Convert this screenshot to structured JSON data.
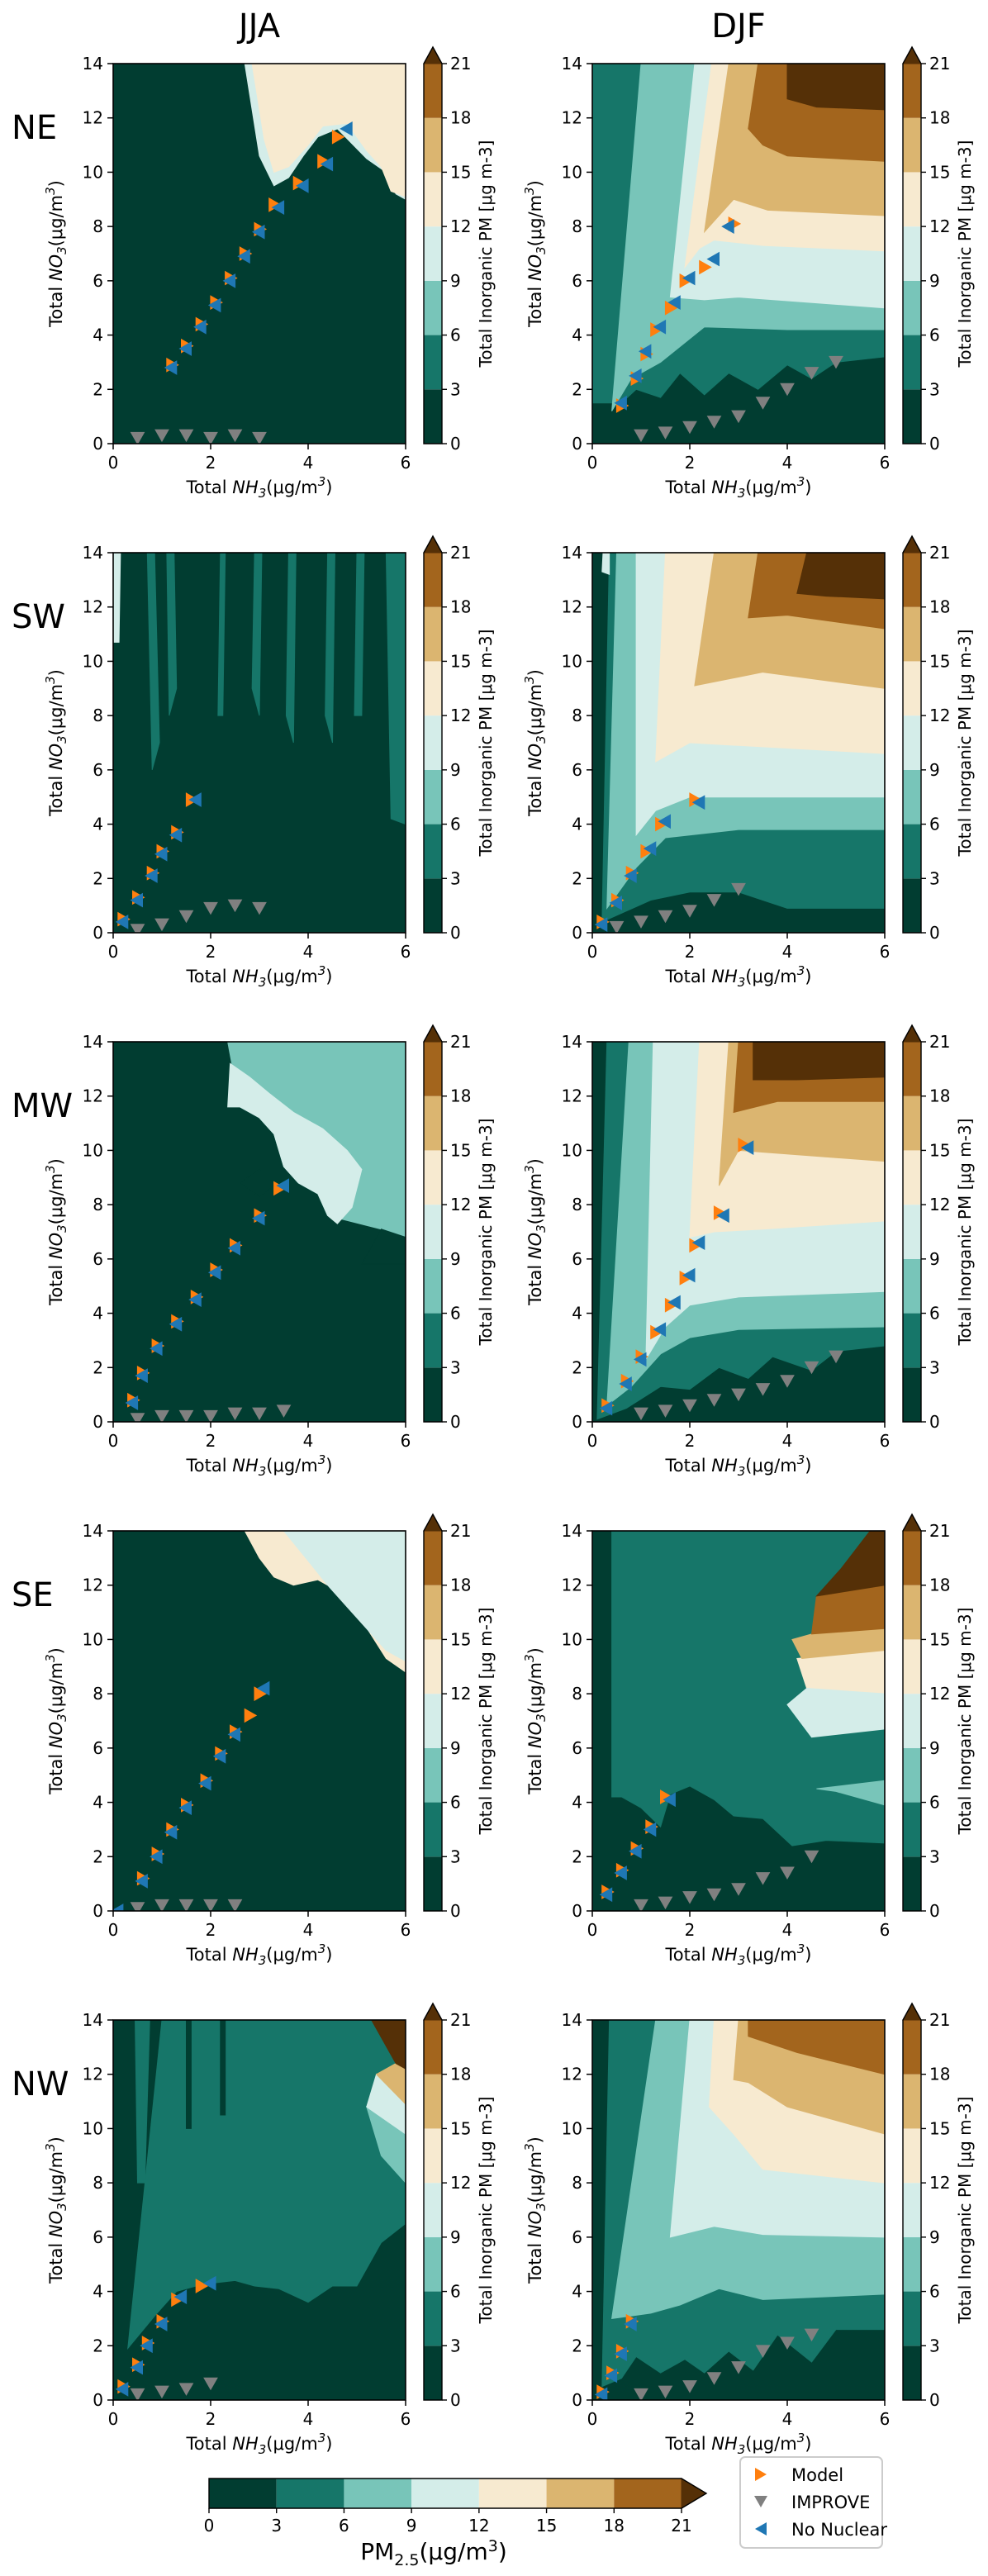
{
  "chart_data": {
    "type": "heatmap",
    "columns": [
      "JJA",
      "DJF"
    ],
    "rows": [
      "NE",
      "SW",
      "MW",
      "SE",
      "NW"
    ],
    "xlabel": "Total NH3(μg/m3)",
    "ylabel": "Total NO3(μg/m3)",
    "colorbar_label": "Total Inorganic PM [μg m-3]",
    "bottom_colorbar_label": "PM2.5(μg/m3)",
    "x_ticks": [
      0,
      2,
      4,
      6
    ],
    "y_ticks": [
      0,
      2,
      4,
      6,
      8,
      10,
      12,
      14
    ],
    "xlim": [
      0,
      6
    ],
    "ylim": [
      0,
      14
    ],
    "levels": [
      0,
      3,
      6,
      9,
      12,
      15,
      18,
      21
    ],
    "level_colors": [
      "#013d31",
      "#167669",
      "#78c5b9",
      "#d4ede9",
      "#f7ead0",
      "#dbb570",
      "#a3651d",
      "#553007"
    ],
    "legend": [
      "Model",
      "IMPROVE",
      "No Nuclear"
    ],
    "legend_colors": [
      "#ff7f0e",
      "#808080",
      "#1f77b4"
    ],
    "panels": [
      {
        "region": "NE",
        "season": "JJA",
        "model": [
          [
            1.2,
            2.9
          ],
          [
            1.5,
            3.6
          ],
          [
            1.8,
            4.4
          ],
          [
            2.1,
            5.2
          ],
          [
            2.4,
            6.1
          ],
          [
            2.7,
            7.0
          ],
          [
            3.0,
            7.9
          ],
          [
            3.3,
            8.8
          ],
          [
            3.8,
            9.6
          ],
          [
            4.3,
            10.4
          ],
          [
            4.6,
            11.3
          ]
        ],
        "no_nuclear": [
          [
            1.2,
            2.8
          ],
          [
            1.5,
            3.5
          ],
          [
            1.8,
            4.3
          ],
          [
            2.1,
            5.1
          ],
          [
            2.4,
            6.0
          ],
          [
            2.7,
            6.9
          ],
          [
            3.0,
            7.8
          ],
          [
            3.4,
            8.7
          ],
          [
            3.9,
            9.5
          ],
          [
            4.4,
            10.3
          ],
          [
            4.8,
            11.6
          ]
        ],
        "improve": [
          [
            0.5,
            0.2
          ],
          [
            1.0,
            0.3
          ],
          [
            1.5,
            0.3
          ],
          [
            2.0,
            0.2
          ],
          [
            2.5,
            0.3
          ],
          [
            3.0,
            0.2
          ]
        ]
      },
      {
        "region": "NE",
        "season": "DJF",
        "model": [
          [
            0.6,
            1.4
          ],
          [
            0.9,
            2.4
          ],
          [
            1.1,
            3.3
          ],
          [
            1.3,
            4.2
          ],
          [
            1.6,
            5.0
          ],
          [
            1.9,
            6.0
          ],
          [
            2.3,
            6.5
          ],
          [
            2.9,
            8.1
          ]
        ],
        "no_nuclear": [
          [
            0.6,
            1.5
          ],
          [
            0.9,
            2.5
          ],
          [
            1.1,
            3.4
          ],
          [
            1.4,
            4.3
          ],
          [
            1.7,
            5.2
          ],
          [
            2.0,
            6.1
          ],
          [
            2.5,
            6.8
          ],
          [
            2.8,
            8.0
          ]
        ],
        "improve": [
          [
            1.0,
            0.3
          ],
          [
            1.5,
            0.4
          ],
          [
            2.0,
            0.6
          ],
          [
            2.5,
            0.8
          ],
          [
            3.0,
            1.0
          ],
          [
            3.5,
            1.5
          ],
          [
            4.0,
            2.0
          ],
          [
            4.5,
            2.6
          ],
          [
            5.0,
            3.0
          ]
        ]
      },
      {
        "region": "SW",
        "season": "JJA",
        "model": [
          [
            0.2,
            0.5
          ],
          [
            0.5,
            1.3
          ],
          [
            0.8,
            2.2
          ],
          [
            1.0,
            3.0
          ],
          [
            1.3,
            3.7
          ],
          [
            1.6,
            4.9
          ]
        ],
        "no_nuclear": [
          [
            0.2,
            0.4
          ],
          [
            0.5,
            1.2
          ],
          [
            0.8,
            2.1
          ],
          [
            1.0,
            2.9
          ],
          [
            1.3,
            3.6
          ],
          [
            1.7,
            4.9
          ]
        ],
        "improve": [
          [
            0.5,
            0.1
          ],
          [
            1.0,
            0.3
          ],
          [
            1.5,
            0.6
          ],
          [
            2.0,
            0.9
          ],
          [
            2.5,
            1.0
          ],
          [
            3.0,
            0.9
          ]
        ]
      },
      {
        "region": "SW",
        "season": "DJF",
        "model": [
          [
            0.2,
            0.4
          ],
          [
            0.5,
            1.2
          ],
          [
            0.8,
            2.2
          ],
          [
            1.1,
            3.0
          ],
          [
            1.4,
            4.0
          ],
          [
            2.1,
            4.9
          ]
        ],
        "no_nuclear": [
          [
            0.2,
            0.3
          ],
          [
            0.5,
            1.1
          ],
          [
            0.8,
            2.1
          ],
          [
            1.2,
            3.1
          ],
          [
            1.5,
            4.1
          ],
          [
            2.2,
            4.8
          ]
        ],
        "improve": [
          [
            0.5,
            0.2
          ],
          [
            1.0,
            0.4
          ],
          [
            1.5,
            0.6
          ],
          [
            2.0,
            0.8
          ],
          [
            2.5,
            1.2
          ],
          [
            3.0,
            1.6
          ]
        ]
      },
      {
        "region": "MW",
        "season": "JJA",
        "model": [
          [
            0.4,
            0.8
          ],
          [
            0.6,
            1.8
          ],
          [
            0.9,
            2.8
          ],
          [
            1.3,
            3.7
          ],
          [
            1.7,
            4.6
          ],
          [
            2.1,
            5.6
          ],
          [
            2.5,
            6.5
          ],
          [
            3.0,
            7.6
          ],
          [
            3.4,
            8.6
          ]
        ],
        "no_nuclear": [
          [
            0.4,
            0.7
          ],
          [
            0.6,
            1.7
          ],
          [
            0.9,
            2.7
          ],
          [
            1.3,
            3.6
          ],
          [
            1.7,
            4.5
          ],
          [
            2.1,
            5.5
          ],
          [
            2.5,
            6.4
          ],
          [
            3.0,
            7.5
          ],
          [
            3.5,
            8.7
          ]
        ],
        "improve": [
          [
            0.5,
            0.1
          ],
          [
            1.0,
            0.2
          ],
          [
            1.5,
            0.2
          ],
          [
            2.0,
            0.2
          ],
          [
            2.5,
            0.3
          ],
          [
            3.0,
            0.3
          ],
          [
            3.5,
            0.4
          ]
        ]
      },
      {
        "region": "MW",
        "season": "DJF",
        "model": [
          [
            0.3,
            0.6
          ],
          [
            0.7,
            1.5
          ],
          [
            1.0,
            2.4
          ],
          [
            1.3,
            3.3
          ],
          [
            1.6,
            4.3
          ],
          [
            1.9,
            5.3
          ],
          [
            2.1,
            6.5
          ],
          [
            2.6,
            7.7
          ],
          [
            3.1,
            10.2
          ]
        ],
        "no_nuclear": [
          [
            0.3,
            0.5
          ],
          [
            0.7,
            1.4
          ],
          [
            1.0,
            2.3
          ],
          [
            1.4,
            3.4
          ],
          [
            1.7,
            4.4
          ],
          [
            2.0,
            5.4
          ],
          [
            2.2,
            6.6
          ],
          [
            2.7,
            7.6
          ],
          [
            3.2,
            10.1
          ]
        ],
        "improve": [
          [
            1.0,
            0.3
          ],
          [
            1.5,
            0.4
          ],
          [
            2.0,
            0.6
          ],
          [
            2.5,
            0.8
          ],
          [
            3.0,
            1.0
          ],
          [
            3.5,
            1.2
          ],
          [
            4.0,
            1.5
          ],
          [
            4.5,
            2.0
          ],
          [
            5.0,
            2.4
          ]
        ]
      },
      {
        "region": "SE",
        "season": "JJA",
        "model": [
          [
            0.6,
            1.2
          ],
          [
            0.9,
            2.1
          ],
          [
            1.2,
            3.0
          ],
          [
            1.5,
            3.9
          ],
          [
            1.9,
            4.8
          ],
          [
            2.2,
            5.8
          ],
          [
            2.5,
            6.6
          ],
          [
            2.8,
            7.2
          ],
          [
            3.0,
            8.0
          ]
        ],
        "no_nuclear": [
          [
            0.1,
            0.0
          ],
          [
            0.6,
            1.1
          ],
          [
            0.9,
            2.0
          ],
          [
            1.2,
            2.9
          ],
          [
            1.5,
            3.8
          ],
          [
            1.9,
            4.7
          ],
          [
            2.2,
            5.7
          ],
          [
            2.5,
            6.5
          ],
          [
            3.1,
            8.2
          ]
        ],
        "improve": [
          [
            0.5,
            0.1
          ],
          [
            1.0,
            0.2
          ],
          [
            1.5,
            0.2
          ],
          [
            2.0,
            0.2
          ],
          [
            2.5,
            0.2
          ]
        ]
      },
      {
        "region": "SE",
        "season": "DJF",
        "model": [
          [
            0.3,
            0.7
          ],
          [
            0.6,
            1.5
          ],
          [
            0.9,
            2.3
          ],
          [
            1.2,
            3.1
          ],
          [
            1.5,
            4.2
          ]
        ],
        "no_nuclear": [
          [
            0.3,
            0.6
          ],
          [
            0.6,
            1.4
          ],
          [
            0.9,
            2.2
          ],
          [
            1.2,
            3.0
          ],
          [
            1.6,
            4.1
          ]
        ],
        "improve": [
          [
            1.0,
            0.2
          ],
          [
            1.5,
            0.3
          ],
          [
            2.0,
            0.5
          ],
          [
            2.5,
            0.6
          ],
          [
            3.0,
            0.8
          ],
          [
            3.5,
            1.2
          ],
          [
            4.0,
            1.4
          ],
          [
            4.5,
            2.0
          ]
        ]
      },
      {
        "region": "NW",
        "season": "JJA",
        "model": [
          [
            0.2,
            0.5
          ],
          [
            0.5,
            1.3
          ],
          [
            0.7,
            2.1
          ],
          [
            1.0,
            2.9
          ],
          [
            1.3,
            3.7
          ],
          [
            1.8,
            4.2
          ]
        ],
        "no_nuclear": [
          [
            0.2,
            0.4
          ],
          [
            0.5,
            1.2
          ],
          [
            0.7,
            2.0
          ],
          [
            1.0,
            2.8
          ],
          [
            1.4,
            3.8
          ],
          [
            2.0,
            4.3
          ]
        ],
        "improve": [
          [
            0.5,
            0.2
          ],
          [
            1.0,
            0.3
          ],
          [
            1.5,
            0.4
          ],
          [
            2.0,
            0.6
          ]
        ]
      },
      {
        "region": "NW",
        "season": "DJF",
        "model": [
          [
            0.2,
            0.3
          ],
          [
            0.4,
            1.0
          ],
          [
            0.6,
            1.8
          ],
          [
            0.8,
            2.9
          ]
        ],
        "no_nuclear": [
          [
            0.2,
            0.2
          ],
          [
            0.4,
            0.9
          ],
          [
            0.6,
            1.7
          ],
          [
            0.8,
            2.8
          ]
        ],
        "improve": [
          [
            1.0,
            0.2
          ],
          [
            1.5,
            0.3
          ],
          [
            2.0,
            0.5
          ],
          [
            2.5,
            0.8
          ],
          [
            3.0,
            1.2
          ],
          [
            3.5,
            1.8
          ],
          [
            4.0,
            2.1
          ],
          [
            4.5,
            2.4
          ]
        ]
      }
    ]
  }
}
